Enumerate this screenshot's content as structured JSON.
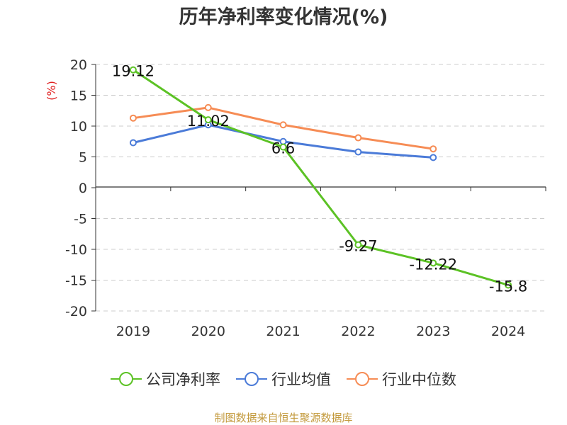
{
  "chart_data": {
    "type": "line",
    "title": "历年净利率变化情况(%)",
    "ylabel": "(%)",
    "categories": [
      "2019",
      "2020",
      "2021",
      "2022",
      "2023",
      "2024"
    ],
    "yticks": [
      "20",
      "15",
      "10",
      "5",
      "0",
      "-5",
      "-10",
      "-15",
      "-20"
    ],
    "ylim": [
      -20,
      20
    ],
    "grid": true,
    "legend_position": "bottom",
    "series": [
      {
        "name": "公司净利率",
        "color": "#5cc225",
        "values": [
          19.12,
          11.02,
          6.6,
          -9.27,
          -12.22,
          -15.8
        ],
        "labels": [
          "19.12",
          "11.02",
          "6.6",
          "-9.27",
          "-12.22",
          "-15.8"
        ]
      },
      {
        "name": "行业均值",
        "color": "#4b7bd8",
        "values": [
          7.3,
          10.2,
          7.5,
          5.8,
          4.9,
          null
        ]
      },
      {
        "name": "行业中位数",
        "color": "#f68c55",
        "values": [
          11.3,
          13.0,
          10.2,
          8.1,
          6.3,
          null
        ]
      }
    ]
  },
  "source": "制图数据来自恒生聚源数据库"
}
